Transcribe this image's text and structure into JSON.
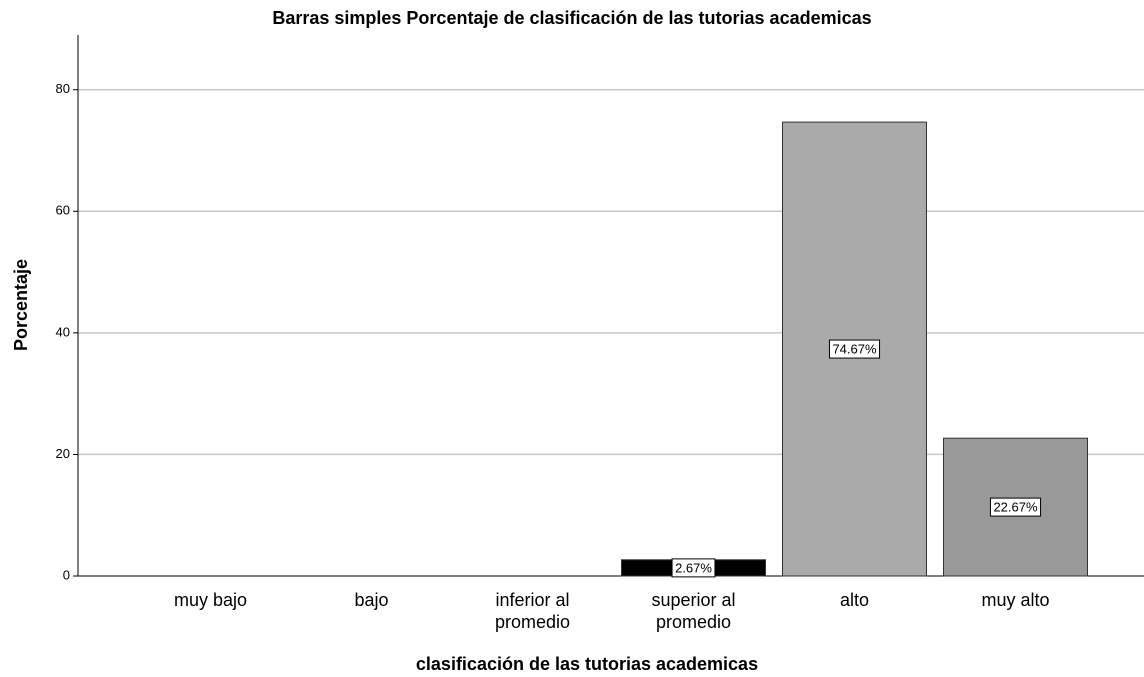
{
  "chart_data": {
    "type": "bar",
    "title": "Barras simples Porcentaje de clasificación de las tutorias academicas",
    "x_label": "clasificación de las tutorias academicas",
    "y_label": "Porcentaje",
    "categories": [
      "muy bajo",
      "bajo",
      "inferior al promedio",
      "superior al promedio",
      "alto",
      "muy alto"
    ],
    "values": [
      0,
      0,
      0,
      2.67,
      74.67,
      22.67
    ],
    "value_labels": [
      null,
      null,
      null,
      "2.67%",
      "74.67%",
      "22.67%"
    ],
    "colors": [
      "#aaaaaa",
      "#aaaaaa",
      "#aaaaaa",
      "#000000",
      "#aaaaaa",
      "#999999"
    ],
    "ylim": [
      0,
      89
    ],
    "yticks": [
      0,
      20,
      40,
      60,
      80
    ],
    "grid": true
  }
}
